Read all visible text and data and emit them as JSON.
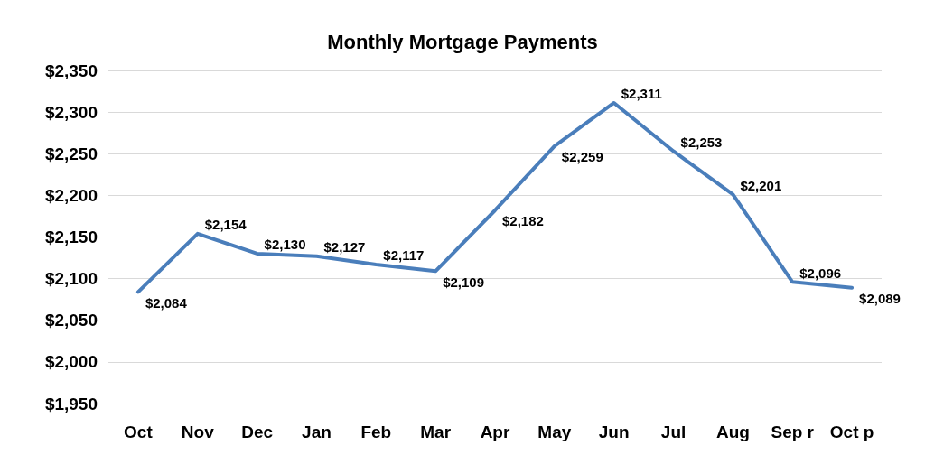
{
  "chart_data": {
    "type": "line",
    "title": "Monthly Mortgage Payments",
    "categories": [
      "Oct",
      "Nov",
      "Dec",
      "Jan",
      "Feb",
      "Mar",
      "Apr",
      "May",
      "Jun",
      "Jul",
      "Aug",
      "Sep r",
      "Oct p"
    ],
    "series": [
      {
        "color": "#4a7ebb",
        "values": [
          2084,
          2154,
          2130,
          2127,
          2117,
          2109,
          2182,
          2259,
          2311,
          2253,
          2201,
          2096,
          2089
        ],
        "value_labels": [
          "$2,084",
          "$2,154",
          "$2,130",
          "$2,127",
          "$2,117",
          "$2,109",
          "$2,182",
          "$2,259",
          "$2,311",
          "$2,253",
          "$2,201",
          "$2,096",
          "$2,089"
        ]
      }
    ],
    "ylim": [
      1950,
      2350
    ],
    "yticks": [
      {
        "value": 1950,
        "label": "$1,950"
      },
      {
        "value": 2000,
        "label": "$2,000"
      },
      {
        "value": 2050,
        "label": "$2,050"
      },
      {
        "value": 2100,
        "label": "$2,100"
      },
      {
        "value": 2150,
        "label": "$2,150"
      },
      {
        "value": 2200,
        "label": "$2,200"
      },
      {
        "value": 2250,
        "label": "$2,250"
      },
      {
        "value": 2300,
        "label": "$2,300"
      },
      {
        "value": 2350,
        "label": "$2,350"
      }
    ],
    "grid": "y",
    "marker": "none",
    "line_style": "solid"
  }
}
